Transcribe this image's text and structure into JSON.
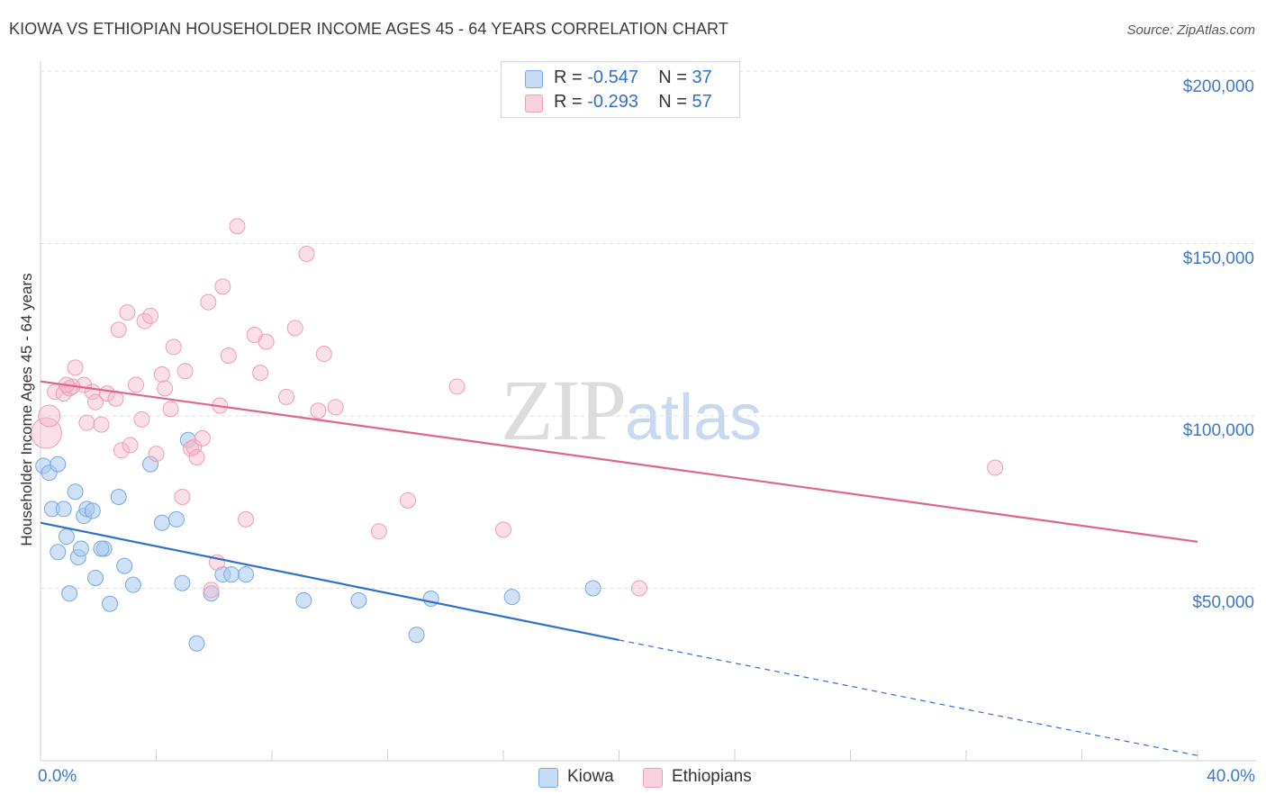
{
  "title": "KIOWA VS ETHIOPIAN HOUSEHOLDER INCOME AGES 45 - 64 YEARS CORRELATION CHART",
  "source": "Source: ZipAtlas.com",
  "watermark": {
    "zip": "ZIP",
    "atlas": "atlas"
  },
  "legend_top": [
    {
      "r_label": "R =",
      "r_value": "-0.547",
      "n_label": "N =",
      "n_value": "37",
      "color": "#a8c8f0"
    },
    {
      "r_label": "R =",
      "r_value": "-0.293",
      "n_label": "N =",
      "n_value": "57",
      "color": "#f5b8cb"
    }
  ],
  "colors": {
    "kiowa_fill": "#a8c8f0",
    "kiowa_line": "#2f6fd0",
    "ethiopian_fill": "#f5b8cb",
    "ethiopian_line": "#e0628f",
    "tick_text": "#3b78d0"
  },
  "chart_data": {
    "type": "scatter",
    "title": "KIOWA VS ETHIOPIAN HOUSEHOLDER INCOME AGES 45 - 64 YEARS CORRELATION CHART",
    "xlabel": "",
    "ylabel": "Householder Income Ages 45 - 64 years",
    "xlim": [
      0,
      40
    ],
    "ylim": [
      0,
      210000
    ],
    "x_tick_labels": [
      "0.0%",
      "40.0%"
    ],
    "y_ticks": [
      50000,
      100000,
      150000,
      200000
    ],
    "y_tick_labels": [
      "$50,000",
      "$100,000",
      "$150,000",
      "$200,000"
    ],
    "grid": true,
    "legend_position": "bottom",
    "series": [
      {
        "name": "Kiowa",
        "color": "#a8c8f0",
        "points": [
          [
            0.1,
            85500
          ],
          [
            0.3,
            83500
          ],
          [
            0.6,
            86000
          ],
          [
            0.4,
            73000
          ],
          [
            0.8,
            73000
          ],
          [
            1.2,
            78000
          ],
          [
            1.5,
            71000
          ],
          [
            1.6,
            73000
          ],
          [
            1.8,
            72500
          ],
          [
            0.9,
            65000
          ],
          [
            0.6,
            60500
          ],
          [
            1.3,
            59000
          ],
          [
            1.4,
            61500
          ],
          [
            2.2,
            61500
          ],
          [
            2.1,
            61500
          ],
          [
            1.0,
            48500
          ],
          [
            1.9,
            53000
          ],
          [
            2.4,
            45500
          ],
          [
            2.7,
            76500
          ],
          [
            2.9,
            56500
          ],
          [
            3.2,
            51000
          ],
          [
            3.8,
            86000
          ],
          [
            4.2,
            69000
          ],
          [
            4.7,
            70000
          ],
          [
            4.9,
            51500
          ],
          [
            5.1,
            93000
          ],
          [
            5.4,
            34000
          ],
          [
            5.9,
            48500
          ],
          [
            6.3,
            54000
          ],
          [
            6.6,
            54000
          ],
          [
            7.1,
            54000
          ],
          [
            9.1,
            46500
          ],
          [
            11.0,
            46500
          ],
          [
            13.5,
            47000
          ],
          [
            13.0,
            36500
          ],
          [
            16.3,
            47500
          ],
          [
            19.1,
            50000
          ]
        ],
        "trend": {
          "x0": 0,
          "y0": 69000,
          "x1": 20,
          "y1": 35000,
          "dash_x1": 40,
          "dash_y1": 1500
        }
      },
      {
        "name": "Ethiopians",
        "color": "#f5b8cb",
        "points": [
          [
            0.2,
            95000
          ],
          [
            0.3,
            100000
          ],
          [
            0.5,
            107000
          ],
          [
            0.8,
            106500
          ],
          [
            1.0,
            108000
          ],
          [
            1.2,
            114000
          ],
          [
            1.5,
            109000
          ],
          [
            1.6,
            98000
          ],
          [
            1.8,
            107000
          ],
          [
            1.9,
            104000
          ],
          [
            2.1,
            97500
          ],
          [
            2.3,
            106500
          ],
          [
            2.6,
            105000
          ],
          [
            2.8,
            90000
          ],
          [
            3.0,
            130000
          ],
          [
            3.1,
            91500
          ],
          [
            3.3,
            109000
          ],
          [
            3.5,
            99000
          ],
          [
            3.6,
            127500
          ],
          [
            3.8,
            129000
          ],
          [
            4.0,
            89000
          ],
          [
            4.2,
            112000
          ],
          [
            4.3,
            108000
          ],
          [
            4.5,
            102000
          ],
          [
            4.6,
            120000
          ],
          [
            4.9,
            76500
          ],
          [
            5.0,
            113000
          ],
          [
            5.2,
            90500
          ],
          [
            5.3,
            91000
          ],
          [
            5.4,
            88000
          ],
          [
            5.6,
            93500
          ],
          [
            5.8,
            133000
          ],
          [
            5.9,
            49500
          ],
          [
            6.1,
            57500
          ],
          [
            6.2,
            103000
          ],
          [
            6.3,
            137500
          ],
          [
            6.5,
            117500
          ],
          [
            6.8,
            155000
          ],
          [
            7.1,
            70000
          ],
          [
            7.4,
            123500
          ],
          [
            7.6,
            112500
          ],
          [
            7.8,
            121500
          ],
          [
            8.5,
            105500
          ],
          [
            8.8,
            125500
          ],
          [
            9.2,
            147000
          ],
          [
            9.6,
            101500
          ],
          [
            9.8,
            118000
          ],
          [
            10.2,
            102500
          ],
          [
            11.7,
            66500
          ],
          [
            12.7,
            75500
          ],
          [
            14.4,
            108500
          ],
          [
            16.0,
            67000
          ],
          [
            20.7,
            50000
          ],
          [
            33.0,
            85000
          ],
          [
            2.7,
            125000
          ],
          [
            1.1,
            108500
          ],
          [
            0.9,
            109000
          ]
        ],
        "trend": {
          "x0": 0,
          "y0": 110000,
          "x1": 40,
          "y1": 63500
        }
      }
    ]
  },
  "legend_bottom": [
    {
      "label": "Kiowa",
      "color": "#a8c8f0",
      "border": "#7aa7e0"
    },
    {
      "label": "Ethiopians",
      "color": "#f5c4d2",
      "border": "#ee9db6"
    }
  ]
}
